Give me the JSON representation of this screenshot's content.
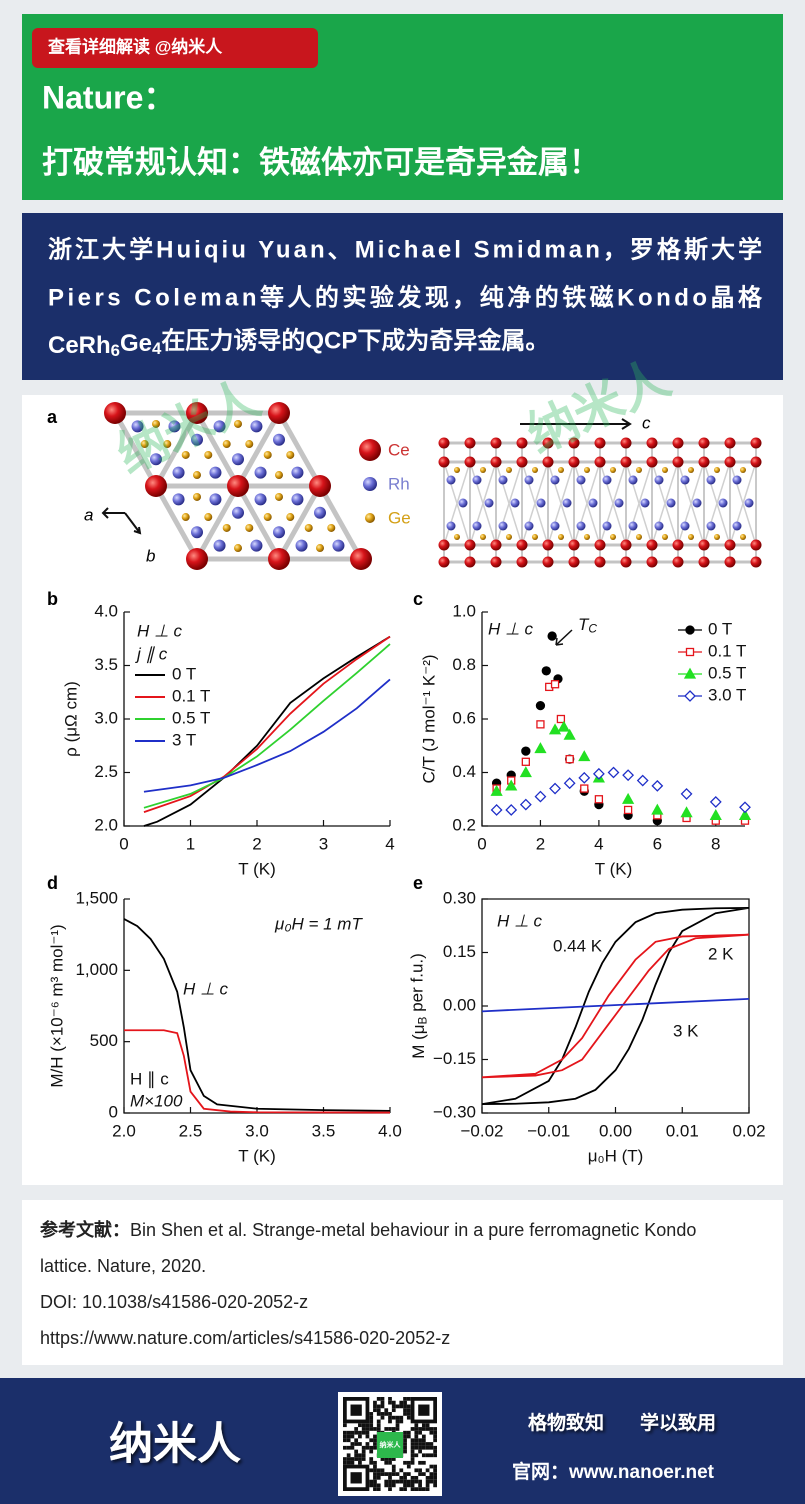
{
  "header": {
    "tag": "查看详细解读 @纳米人",
    "title_line1": "Nature：",
    "title_line2": "打破常规认知：铁磁体亦可是奇异金属！"
  },
  "summary": {
    "lines": [
      "浙江大学Huiqiu Yuan、Michael Smidman，罗格斯大学",
      "Piers Coleman等人的实验发现，纯净的铁磁Kondo晶格",
      [
        {
          "t": "CeRh"
        },
        {
          "sub": "6"
        },
        {
          "t": "Ge"
        },
        {
          "sub": "4"
        },
        {
          "t": "在压力诱导的QCP下成为奇异金属。"
        }
      ]
    ]
  },
  "watermark": "纳米人",
  "figure": {
    "panel_a": {
      "label": "a",
      "legend": [
        "Ce",
        "Rh",
        "Ge"
      ],
      "axes": [
        "a",
        "b",
        "c"
      ]
    },
    "charts": [
      {
        "type": "line",
        "label": "b",
        "xlabel": "T (K)",
        "ylabel": "ρ (μΩ cm)",
        "xlim": [
          0,
          4
        ],
        "ylim": [
          2,
          4
        ],
        "xticks": [
          0,
          1,
          2,
          3,
          4
        ],
        "yticks": [
          {
            "value": 2,
            "label": "2.0"
          },
          2.5,
          {
            "value": 3,
            "label": "3.0"
          },
          3.5,
          {
            "value": 4,
            "label": "4.0"
          }
        ],
        "annotations": [
          {
            "text": "H ⊥ c"
          },
          {
            "text": "j ∥ c"
          }
        ],
        "legend": "upper left",
        "series": [
          {
            "name": "0 T",
            "color": "#000000",
            "x": [
              0.3,
              0.5,
              1,
              1.5,
              2,
              2.5,
              3,
              3.5,
              4
            ],
            "values": [
              2.0,
              2.04,
              2.2,
              2.45,
              2.75,
              3.15,
              3.38,
              3.58,
              3.77
            ]
          },
          {
            "name": "0.1 T",
            "color": "#e4151b",
            "x": [
              0.3,
              1,
              1.5,
              2,
              2.5,
              3,
              3.5,
              4
            ],
            "values": [
              2.13,
              2.28,
              2.46,
              2.72,
              3.05,
              3.33,
              3.56,
              3.77
            ]
          },
          {
            "name": "0.5 T",
            "color": "#2fd12f",
            "x": [
              0.3,
              1,
              1.5,
              2,
              2.5,
              3,
              3.5,
              4
            ],
            "values": [
              2.17,
              2.3,
              2.45,
              2.65,
              2.9,
              3.17,
              3.43,
              3.7
            ]
          },
          {
            "name": "3 T",
            "color": "#1f2fc8",
            "x": [
              0.3,
              1,
              1.5,
              2,
              2.5,
              3,
              3.5,
              4
            ],
            "values": [
              2.32,
              2.38,
              2.45,
              2.57,
              2.7,
              2.88,
              3.1,
              3.37
            ]
          }
        ]
      },
      {
        "type": "scatter",
        "label": "c",
        "xlabel": "T (K)",
        "ylabel": "C/T (J mol⁻¹ K⁻²)",
        "xlim": [
          0,
          9
        ],
        "ylim": [
          0.2,
          1
        ],
        "xticks": [
          0,
          2,
          4,
          6,
          8
        ],
        "yticks": [
          0.2,
          0.4,
          0.6,
          0.8,
          {
            "value": 1,
            "label": "1.0"
          }
        ],
        "annotations": [
          {
            "text": "H ⊥ c"
          },
          {
            "text": [
              {
                "t": "T"
              },
              {
                "sub": "C"
              }
            ]
          }
        ],
        "legend": "upper right",
        "series": [
          {
            "name": "0 T",
            "color": "#000000",
            "marker": "circle",
            "filled": true,
            "x": [
              0.5,
              1,
              1.5,
              2,
              2.2,
              2.4,
              2.6,
              3,
              3.5,
              4,
              5,
              6
            ],
            "values": [
              0.36,
              0.39,
              0.48,
              0.65,
              0.78,
              0.91,
              0.75,
              0.45,
              0.33,
              0.28,
              0.24,
              0.22
            ]
          },
          {
            "name": "0.1 T",
            "color": "#e4151b",
            "marker": "square",
            "filled": false,
            "x": [
              0.5,
              1,
              1.5,
              2,
              2.3,
              2.5,
              2.7,
              3,
              3.5,
              4,
              5,
              6,
              7,
              8,
              9
            ],
            "values": [
              0.34,
              0.37,
              0.44,
              0.58,
              0.72,
              0.73,
              0.6,
              0.45,
              0.34,
              0.3,
              0.26,
              0.24,
              0.23,
              0.22,
              0.22
            ]
          },
          {
            "name": "0.5 T",
            "color": "#22e022",
            "marker": "triangle",
            "filled": true,
            "x": [
              0.5,
              1,
              1.5,
              2,
              2.5,
              2.8,
              3,
              3.5,
              4,
              5,
              6,
              7,
              8,
              9
            ],
            "values": [
              0.33,
              0.35,
              0.4,
              0.49,
              0.56,
              0.57,
              0.54,
              0.46,
              0.38,
              0.3,
              0.26,
              0.25,
              0.24,
              0.24
            ]
          },
          {
            "name": "3.0 T",
            "color": "#1f2fc8",
            "marker": "diamond",
            "filled": false,
            "x": [
              0.5,
              1,
              1.5,
              2,
              2.5,
              3,
              3.5,
              4,
              4.5,
              5,
              5.5,
              6,
              7,
              8,
              9
            ],
            "values": [
              0.26,
              0.26,
              0.28,
              0.31,
              0.34,
              0.36,
              0.38,
              0.395,
              0.4,
              0.39,
              0.37,
              0.35,
              0.32,
              0.29,
              0.27
            ]
          }
        ]
      },
      {
        "type": "line",
        "label": "d",
        "xlabel": "T (K)",
        "ylabel": "M/H (×10⁻⁶ m³ mol⁻¹)",
        "xlim": [
          2,
          4
        ],
        "ylim": [
          0,
          1500
        ],
        "xticks": [
          {
            "value": 2,
            "label": "2.0"
          },
          2.5,
          {
            "value": 3,
            "label": "3.0"
          },
          3.5,
          {
            "value": 4,
            "label": "4.0"
          }
        ],
        "yticks": [
          0,
          500,
          {
            "value": 1000,
            "label": "1,000"
          },
          {
            "value": 1500,
            "label": "1,500"
          }
        ],
        "annotations": [
          {
            "text": "μ₀H = 1 mT",
            "color": "#000000"
          },
          {
            "text": "M×100",
            "color": "#e4151b"
          }
        ],
        "series": [
          {
            "name": "H ⊥ c",
            "color": "#000000",
            "x": [
              2.0,
              2.1,
              2.2,
              2.3,
              2.4,
              2.45,
              2.5,
              2.6,
              2.7,
              3.0,
              3.5,
              4.0
            ],
            "values": [
              1360,
              1310,
              1220,
              1080,
              850,
              600,
              300,
              120,
              60,
              30,
              20,
              15
            ]
          },
          {
            "name": "H ∥ c",
            "color": "#e4151b",
            "x": [
              2.0,
              2.3,
              2.4,
              2.45,
              2.5,
              2.6,
              2.8,
              3.0,
              4.0
            ],
            "values": [
              580,
              580,
              560,
              400,
              150,
              30,
              10,
              5,
              3
            ]
          }
        ]
      },
      {
        "type": "line",
        "label": "e",
        "xlabel": "μ₀H (T)",
        "ylabel": [
          {
            "t": "M (μ"
          },
          {
            "sub": "B"
          },
          {
            "t": " per f.u.)"
          }
        ],
        "xlim": [
          -0.02,
          0.02
        ],
        "ylim": [
          -0.3,
          0.3
        ],
        "xticks": [
          {
            "value": -0.02,
            "label": "−0.02"
          },
          {
            "value": -0.01,
            "label": "−0.01"
          },
          {
            "value": 0,
            "label": "0.00"
          },
          0.01,
          0.02
        ],
        "yticks": [
          {
            "value": -0.3,
            "label": "−0.30"
          },
          {
            "value": -0.15,
            "label": "−0.15"
          },
          {
            "value": 0,
            "label": "0.00"
          },
          0.15,
          {
            "value": 0.3,
            "label": "0.30"
          }
        ],
        "annotations": [
          {
            "text": "H ⊥ c",
            "color": "#000000"
          }
        ],
        "series": [
          {
            "name": "0.44 K",
            "color": "#000000",
            "x": [
              0.02,
              0.015,
              0.01,
              0.006,
              0.003,
              0,
              -0.002,
              -0.004,
              -0.006,
              -0.008,
              -0.01,
              -0.015,
              -0.02,
              -0.015,
              -0.01,
              -0.006,
              -0.003,
              0,
              0.002,
              0.004,
              0.006,
              0.008,
              0.01,
              0.015,
              0.02
            ],
            "values": [
              0.275,
              0.274,
              0.27,
              0.26,
              0.235,
              0.18,
              0.12,
              0.04,
              -0.06,
              -0.15,
              -0.21,
              -0.26,
              -0.275,
              -0.274,
              -0.27,
              -0.26,
              -0.235,
              -0.18,
              -0.12,
              -0.04,
              0.06,
              0.15,
              0.21,
              0.26,
              0.275
            ]
          },
          {
            "name": "2 K",
            "color": "#e4151b",
            "x": [
              0.02,
              0.01,
              0.006,
              0.003,
              0.001,
              -0.001,
              -0.003,
              -0.005,
              -0.008,
              -0.012,
              -0.02,
              -0.012,
              -0.008,
              -0.005,
              -0.003,
              -0.001,
              0.001,
              0.003,
              0.005,
              0.008,
              0.012,
              0.02
            ],
            "values": [
              0.2,
              0.195,
              0.18,
              0.13,
              0.08,
              0.03,
              -0.03,
              -0.09,
              -0.15,
              -0.19,
              -0.2,
              -0.195,
              -0.18,
              -0.15,
              -0.1,
              -0.05,
              0.0,
              0.05,
              0.1,
              0.16,
              0.19,
              0.2
            ]
          },
          {
            "name": "3 K",
            "color": "#1f2fc8",
            "x": [
              -0.02,
              0.02
            ],
            "values": [
              -0.015,
              0.02
            ]
          }
        ]
      }
    ]
  },
  "reference": {
    "label": "参考文献：",
    "citation_lines": [
      "Bin Shen et al. Strange-metal behaviour in a pure ferromagnetic Kondo",
      "lattice. Nature, 2020."
    ],
    "doi": "DOI: 10.1038/s41586-020-2052-z",
    "url": "https://www.nature.com/articles/s41586-020-2052-z"
  },
  "footer": {
    "logo": "纳米人",
    "qr_label": "纳米人",
    "slogan": [
      "格物致知",
      "学以致用"
    ],
    "website": "官网：www.nanoer.net"
  }
}
